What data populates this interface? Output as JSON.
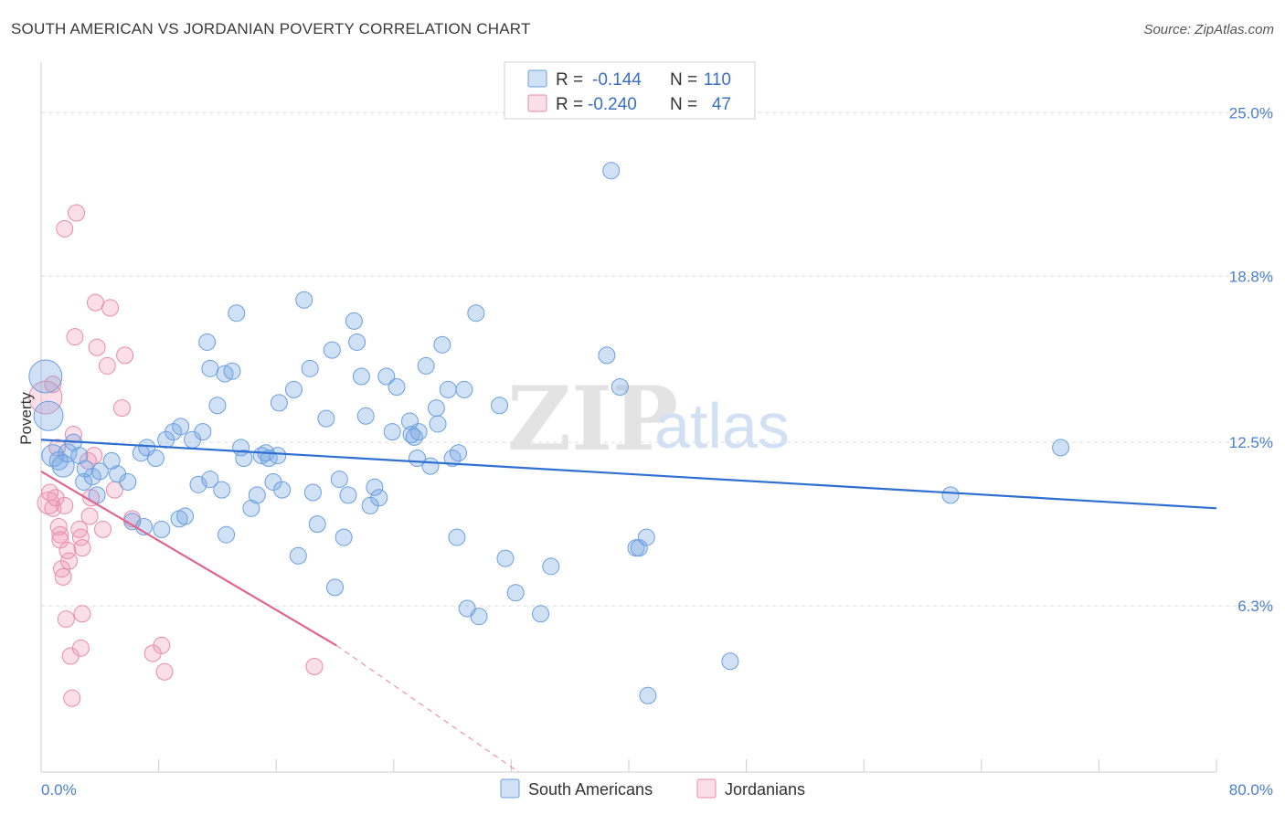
{
  "title": "SOUTH AMERICAN VS JORDANIAN POVERTY CORRELATION CHART",
  "source": "Source: ZipAtlas.com",
  "watermark": {
    "zip": "ZIP",
    "atlas": "atlas"
  },
  "colors": {
    "blue": "#6a9fe0",
    "blue_fill": "rgba(120,165,225,0.35)",
    "blue_line": "#2f6fd1",
    "pink": "#e98aaa",
    "pink_fill": "rgba(240,150,180,0.30)",
    "pink_line": "#e0648f",
    "axis_text": "#4a7fd0",
    "grid": "#dcdcdc"
  },
  "legend_top": {
    "rows": [
      {
        "r_label": "R =",
        "r_value": "-0.144",
        "n_label": "N =",
        "n_value": "110",
        "color": "blue"
      },
      {
        "r_label": "R =",
        "r_value": "-0.240",
        "n_label": "N =",
        "n_value": "47",
        "color": "pink"
      }
    ]
  },
  "legend_bottom": {
    "items": [
      {
        "label": "South Americans",
        "color": "blue"
      },
      {
        "label": "Jordanians",
        "color": "pink"
      }
    ]
  },
  "chart_data": {
    "type": "scatter",
    "title": "SOUTH AMERICAN VS JORDANIAN POVERTY CORRELATION CHART",
    "xlabel": "",
    "ylabel": "Poverty",
    "xlim": [
      0,
      80
    ],
    "ylim": [
      0,
      26.5
    ],
    "x_tick_labels": [
      {
        "value": 0,
        "label": "0.0%"
      },
      {
        "value": 80,
        "label": "80.0%"
      }
    ],
    "y_ticks": [
      {
        "value": 6.3,
        "label": "6.3%"
      },
      {
        "value": 12.5,
        "label": "12.5%"
      },
      {
        "value": 18.8,
        "label": "18.8%"
      },
      {
        "value": 25.0,
        "label": "25.0%"
      }
    ],
    "x_minor_ticks": [
      0,
      8,
      16,
      24,
      32,
      40,
      48,
      56,
      64,
      72,
      80
    ],
    "series": [
      {
        "name": "South Americans",
        "color": "blue",
        "trend": {
          "x0": 0,
          "y0": 12.6,
          "x1": 80,
          "y1": 10.0
        },
        "points": [
          [
            0.3,
            15.0,
            18
          ],
          [
            0.5,
            13.5,
            16
          ],
          [
            0.8,
            12.0,
            12
          ],
          [
            1.2,
            11.8,
            10
          ],
          [
            1.5,
            11.6,
            12
          ],
          [
            1.8,
            12.1,
            10
          ],
          [
            2.2,
            12.5,
            9
          ],
          [
            2.6,
            12.0,
            9
          ],
          [
            3.0,
            11.5,
            9
          ],
          [
            2.9,
            11.0,
            9
          ],
          [
            3.5,
            11.2,
            9
          ],
          [
            4.0,
            11.4,
            9
          ],
          [
            3.8,
            10.5,
            9
          ],
          [
            4.8,
            11.8,
            9
          ],
          [
            5.2,
            11.3,
            9
          ],
          [
            5.9,
            11.0,
            9
          ],
          [
            6.2,
            9.5,
            9
          ],
          [
            6.8,
            12.1,
            9
          ],
          [
            7.0,
            9.3,
            9
          ],
          [
            7.2,
            12.3,
            9
          ],
          [
            7.8,
            11.9,
            9
          ],
          [
            8.2,
            9.2,
            9
          ],
          [
            8.5,
            12.6,
            9
          ],
          [
            9.0,
            12.9,
            9
          ],
          [
            9.5,
            13.1,
            9
          ],
          [
            9.4,
            9.6,
            9
          ],
          [
            9.8,
            9.7,
            9
          ],
          [
            10.3,
            12.6,
            9
          ],
          [
            10.7,
            10.9,
            9
          ],
          [
            11.0,
            12.9,
            9
          ],
          [
            11.5,
            11.1,
            9
          ],
          [
            11.3,
            16.3,
            9
          ],
          [
            11.5,
            15.3,
            9
          ],
          [
            12.0,
            13.9,
            9
          ],
          [
            12.3,
            10.7,
            9
          ],
          [
            12.5,
            15.1,
            9
          ],
          [
            12.6,
            9.0,
            9
          ],
          [
            13.0,
            15.2,
            9
          ],
          [
            13.3,
            17.4,
            9
          ],
          [
            13.6,
            12.3,
            9
          ],
          [
            13.8,
            11.9,
            9
          ],
          [
            14.3,
            10.0,
            9
          ],
          [
            14.7,
            10.5,
            9
          ],
          [
            15.0,
            12.0,
            9
          ],
          [
            15.3,
            12.1,
            9
          ],
          [
            15.5,
            11.9,
            9
          ],
          [
            15.8,
            11.0,
            9
          ],
          [
            16.1,
            12.0,
            9
          ],
          [
            16.4,
            10.7,
            9
          ],
          [
            16.2,
            14.0,
            9
          ],
          [
            17.2,
            14.5,
            9
          ],
          [
            17.5,
            8.2,
            9
          ],
          [
            17.9,
            17.9,
            9
          ],
          [
            18.3,
            15.3,
            9
          ],
          [
            18.5,
            10.6,
            9
          ],
          [
            18.8,
            9.4,
            9
          ],
          [
            19.4,
            13.4,
            9
          ],
          [
            19.8,
            16.0,
            9
          ],
          [
            20.0,
            7.0,
            9
          ],
          [
            20.3,
            11.1,
            9
          ],
          [
            20.6,
            8.9,
            9
          ],
          [
            20.9,
            10.5,
            9
          ],
          [
            21.3,
            17.1,
            9
          ],
          [
            21.5,
            16.3,
            9
          ],
          [
            21.8,
            15.0,
            9
          ],
          [
            22.1,
            13.5,
            9
          ],
          [
            22.4,
            10.1,
            9
          ],
          [
            22.7,
            10.8,
            9
          ],
          [
            23.0,
            10.4,
            9
          ],
          [
            23.5,
            15.0,
            9
          ],
          [
            23.9,
            12.9,
            9
          ],
          [
            24.2,
            14.6,
            9
          ],
          [
            25.1,
            13.3,
            9
          ],
          [
            25.2,
            12.8,
            9
          ],
          [
            25.4,
            12.7,
            9
          ],
          [
            25.6,
            11.9,
            9
          ],
          [
            25.7,
            12.9,
            9
          ],
          [
            26.2,
            15.4,
            9
          ],
          [
            26.5,
            11.6,
            9
          ],
          [
            26.9,
            13.8,
            9
          ],
          [
            27.0,
            13.2,
            9
          ],
          [
            27.3,
            16.2,
            9
          ],
          [
            27.7,
            14.5,
            9
          ],
          [
            28.0,
            11.9,
            9
          ],
          [
            28.3,
            8.9,
            9
          ],
          [
            28.4,
            12.1,
            9
          ],
          [
            28.8,
            14.5,
            9
          ],
          [
            29.0,
            6.2,
            9
          ],
          [
            29.6,
            17.4,
            9
          ],
          [
            29.8,
            5.9,
            9
          ],
          [
            31.2,
            13.9,
            9
          ],
          [
            31.6,
            8.1,
            9
          ],
          [
            32.3,
            6.8,
            9
          ],
          [
            34.0,
            6.0,
            9
          ],
          [
            34.7,
            7.8,
            9
          ],
          [
            38.5,
            15.8,
            9
          ],
          [
            38.8,
            22.8,
            9
          ],
          [
            39.4,
            14.6,
            9
          ],
          [
            40.5,
            8.5,
            9
          ],
          [
            40.7,
            8.5,
            9
          ],
          [
            41.2,
            8.9,
            9
          ],
          [
            41.3,
            2.9,
            9
          ],
          [
            46.9,
            4.2,
            9
          ],
          [
            61.9,
            10.5,
            9
          ],
          [
            69.4,
            12.3,
            9
          ]
        ]
      },
      {
        "name": "Jordanians",
        "color": "pink",
        "trend": {
          "x0": 0,
          "y0": 11.4,
          "x1": 20.1,
          "y1": 4.8
        },
        "trend_dashed": {
          "x0": 20.1,
          "y0": 4.8,
          "x1": 32.5,
          "y1": 0
        },
        "points": [
          [
            0.3,
            14.2,
            18
          ],
          [
            0.5,
            10.2,
            12
          ],
          [
            0.6,
            10.6,
            9
          ],
          [
            0.8,
            10.0,
            9
          ],
          [
            0.8,
            14.7,
            9
          ],
          [
            1.0,
            10.4,
            9
          ],
          [
            1.1,
            12.3,
            9
          ],
          [
            1.2,
            9.3,
            9
          ],
          [
            1.3,
            9.0,
            9
          ],
          [
            1.3,
            8.8,
            9
          ],
          [
            1.4,
            7.7,
            9
          ],
          [
            1.5,
            7.4,
            9
          ],
          [
            1.6,
            10.1,
            9
          ],
          [
            1.6,
            20.6,
            9
          ],
          [
            1.7,
            5.8,
            9
          ],
          [
            1.8,
            8.4,
            9
          ],
          [
            1.9,
            8.0,
            9
          ],
          [
            2.0,
            4.4,
            9
          ],
          [
            2.1,
            2.8,
            9
          ],
          [
            2.2,
            12.8,
            9
          ],
          [
            2.3,
            16.5,
            9
          ],
          [
            2.4,
            21.2,
            9
          ],
          [
            2.6,
            9.2,
            9
          ],
          [
            2.7,
            8.9,
            9
          ],
          [
            2.7,
            4.7,
            9
          ],
          [
            2.8,
            8.5,
            9
          ],
          [
            2.8,
            6.0,
            9
          ],
          [
            3.2,
            11.8,
            9
          ],
          [
            3.3,
            9.7,
            9
          ],
          [
            3.4,
            10.4,
            9
          ],
          [
            3.6,
            12.0,
            9
          ],
          [
            3.7,
            17.8,
            9
          ],
          [
            3.8,
            16.1,
            9
          ],
          [
            4.2,
            9.2,
            9
          ],
          [
            4.5,
            15.4,
            9
          ],
          [
            4.7,
            17.6,
            9
          ],
          [
            5.0,
            10.7,
            9
          ],
          [
            5.5,
            13.8,
            9
          ],
          [
            5.7,
            15.8,
            9
          ],
          [
            6.2,
            9.6,
            9
          ],
          [
            7.6,
            4.5,
            9
          ],
          [
            8.2,
            4.8,
            9
          ],
          [
            8.4,
            3.8,
            9
          ],
          [
            18.6,
            4.0,
            9
          ]
        ]
      }
    ]
  }
}
